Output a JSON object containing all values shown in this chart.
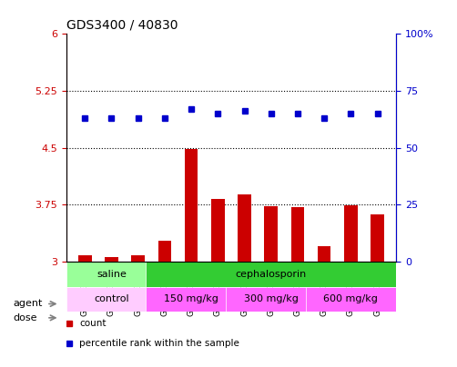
{
  "title": "GDS3400 / 40830",
  "samples": [
    "GSM253585",
    "GSM253586",
    "GSM253587",
    "GSM253588",
    "GSM253589",
    "GSM253590",
    "GSM253591",
    "GSM253592",
    "GSM253593",
    "GSM253594",
    "GSM253595",
    "GSM253596"
  ],
  "bar_values": [
    3.08,
    3.06,
    3.09,
    3.28,
    4.48,
    3.82,
    3.88,
    3.73,
    3.72,
    3.2,
    3.74,
    3.62
  ],
  "dot_values": [
    63,
    63,
    63,
    63,
    67,
    65,
    66,
    65,
    65,
    63,
    65,
    65
  ],
  "bar_color": "#cc0000",
  "dot_color": "#0000cc",
  "ylim_left": [
    3.0,
    6.0
  ],
  "ylim_right": [
    0,
    100
  ],
  "yticks_left": [
    3.0,
    3.75,
    4.5,
    5.25,
    6.0
  ],
  "yticks_right": [
    0,
    25,
    50,
    75,
    100
  ],
  "ytick_labels_left": [
    "3",
    "3.75",
    "4.5",
    "5.25",
    "6"
  ],
  "ytick_labels_right": [
    "0",
    "25",
    "50",
    "75",
    "100%"
  ],
  "hlines": [
    3.75,
    4.5,
    5.25
  ],
  "agent_regions": [
    {
      "label": "saline",
      "start": 0,
      "end": 3,
      "color": "#99ff99"
    },
    {
      "label": "cephalosporin",
      "start": 3,
      "end": 12,
      "color": "#33cc33"
    }
  ],
  "dose_regions": [
    {
      "label": "control",
      "start": 0,
      "end": 3,
      "color": "#ffaaff"
    },
    {
      "label": "150 mg/kg",
      "start": 3,
      "end": 6,
      "color": "#ff55ff"
    },
    {
      "label": "300 mg/kg",
      "start": 6,
      "end": 9,
      "color": "#ff55ff"
    },
    {
      "label": "600 mg/kg",
      "start": 9,
      "end": 12,
      "color": "#ff55ff"
    }
  ],
  "legend_items": [
    {
      "label": "count",
      "color": "#cc0000"
    },
    {
      "label": "percentile rank within the sample",
      "color": "#0000cc"
    }
  ],
  "left_labels": [
    "agent",
    "dose"
  ],
  "arrow_color": "#888888",
  "tick_label_color_left": "#cc0000",
  "tick_label_color_right": "#0000cc",
  "bar_bottom": 3.0,
  "n_samples": 12
}
